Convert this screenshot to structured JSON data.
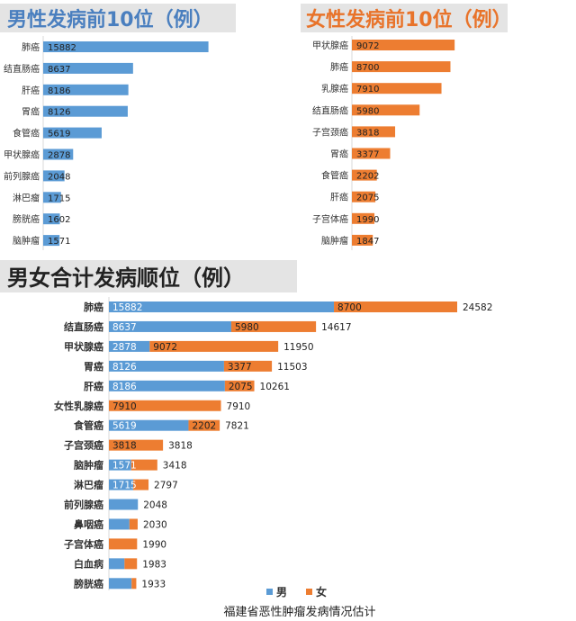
{
  "colors": {
    "male": "#5b9bd5",
    "female": "#ed7d31",
    "title_male": "#4a7fbf",
    "title_female": "#e8732a",
    "title_total": "#222222",
    "title_bg": "#e4e4e4",
    "grid": "#d9d9d9"
  },
  "footer": {
    "caption": "福建省恶性肿瘤发病情况估计"
  },
  "chart_data": [
    {
      "type": "bar",
      "orientation": "horizontal",
      "title": "男性发病前10位（例）",
      "categories": [
        "肺癌",
        "结直肠癌",
        "肝癌",
        "胃癌",
        "食管癌",
        "甲状腺癌",
        "前列腺癌",
        "淋巴瘤",
        "膀胱癌",
        "脑肿瘤"
      ],
      "series": [
        {
          "values": [
            15882,
            8637,
            8186,
            8126,
            5619,
            2878,
            2048,
            1715,
            1602,
            1571
          ]
        }
      ],
      "xlim": [
        0,
        25000
      ],
      "color": "#5b9bd5"
    },
    {
      "type": "bar",
      "orientation": "horizontal",
      "title": "女性发病前10位（例）",
      "categories": [
        "甲状腺癌",
        "肺癌",
        "乳腺癌",
        "结直肠癌",
        "子宫颈癌",
        "胃癌",
        "食管癌",
        "肝癌",
        "子宫体癌",
        "脑肿瘤"
      ],
      "series": [
        {
          "values": [
            9072,
            8700,
            7910,
            5980,
            3818,
            3377,
            2202,
            2075,
            1990,
            1847
          ]
        }
      ],
      "xlim": [
        0,
        12000
      ],
      "color": "#ed7d31"
    },
    {
      "type": "bar",
      "orientation": "horizontal",
      "stacked": true,
      "title": "男女合计发病顺位（例）",
      "categories": [
        "肺癌",
        "结直肠癌",
        "甲状腺癌",
        "胃癌",
        "肝癌",
        "女性乳腺癌",
        "食管癌",
        "子宫颈癌",
        "脑肿瘤",
        "淋巴瘤",
        "前列腺癌",
        "鼻咽癌",
        "子宫体癌",
        "白血病",
        "膀胱癌"
      ],
      "series": [
        {
          "name": "男",
          "values": [
            15882,
            8637,
            2878,
            8126,
            8186,
            0,
            5619,
            0,
            1571,
            1715,
            2048,
            1450,
            0,
            1100,
            1602
          ]
        },
        {
          "name": "女",
          "values": [
            8700,
            5980,
            9072,
            3377,
            2075,
            7910,
            2202,
            3818,
            1847,
            1082,
            0,
            580,
            1990,
            883,
            331
          ]
        }
      ],
      "segment_labels": {
        "男": [
          "15882",
          "8637",
          "2878",
          "8126",
          "8186",
          "",
          "5619",
          "",
          "1571",
          "1715",
          "",
          "",
          "",
          "",
          ""
        ],
        "女": [
          "8700",
          "5980",
          "9072",
          "3377",
          "2075",
          "7910",
          "2202",
          "3818",
          "",
          "",
          "",
          "",
          "",
          "",
          ""
        ]
      },
      "totals": [
        24582,
        14617,
        11950,
        11503,
        10261,
        7910,
        7821,
        3818,
        3418,
        2797,
        2048,
        2030,
        1990,
        1983,
        1933
      ],
      "legend": {
        "position": "bottom",
        "entries": [
          "男",
          "女"
        ]
      },
      "xlim": [
        0,
        28000
      ]
    }
  ]
}
